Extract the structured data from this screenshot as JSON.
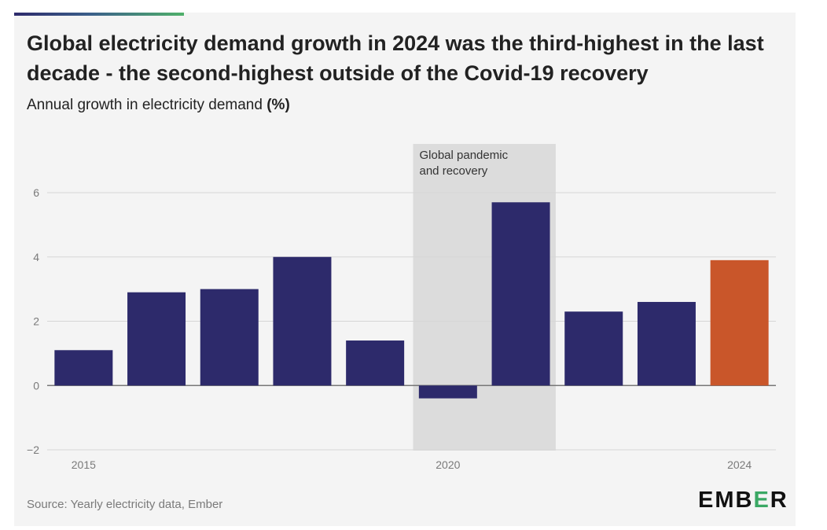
{
  "header": {
    "title": "Global electricity demand growth in 2024 was the third-highest in the last decade - the second-highest outside of the Covid-19 recovery",
    "subtitle_text": "Annual growth in electricity demand",
    "subtitle_unit": "(%)"
  },
  "footer": {
    "source": "Source: Yearly electricity data, Ember",
    "logo_text": {
      "before": "EMB",
      "accent": "E",
      "after": "R"
    }
  },
  "colors": {
    "bar": "#2d2a6b",
    "highlight_bar": "#c9562a",
    "shade": "#dcdcdc",
    "grid": "#d6d6d6",
    "tick_text": "#7a7a7a",
    "logo_accent": "#3aa864"
  },
  "chart_data": {
    "type": "bar",
    "x": [
      2015,
      2016,
      2017,
      2018,
      2019,
      2020,
      2021,
      2022,
      2023,
      2024
    ],
    "values": [
      1.1,
      2.9,
      3.0,
      4.0,
      1.4,
      -0.4,
      5.7,
      2.3,
      2.6,
      3.9
    ],
    "highlight": [
      2024
    ],
    "ylim": [
      -2,
      6
    ],
    "yticks": [
      -2,
      0,
      2,
      4,
      6
    ],
    "xticks": [
      2015,
      2020,
      2024
    ],
    "xlabel": "",
    "ylabel": "",
    "grid": true,
    "legend": "none",
    "annotation": {
      "text_lines": [
        "Global pandemic",
        "and recovery"
      ],
      "x_start": 2020,
      "x_end": 2021
    }
  }
}
